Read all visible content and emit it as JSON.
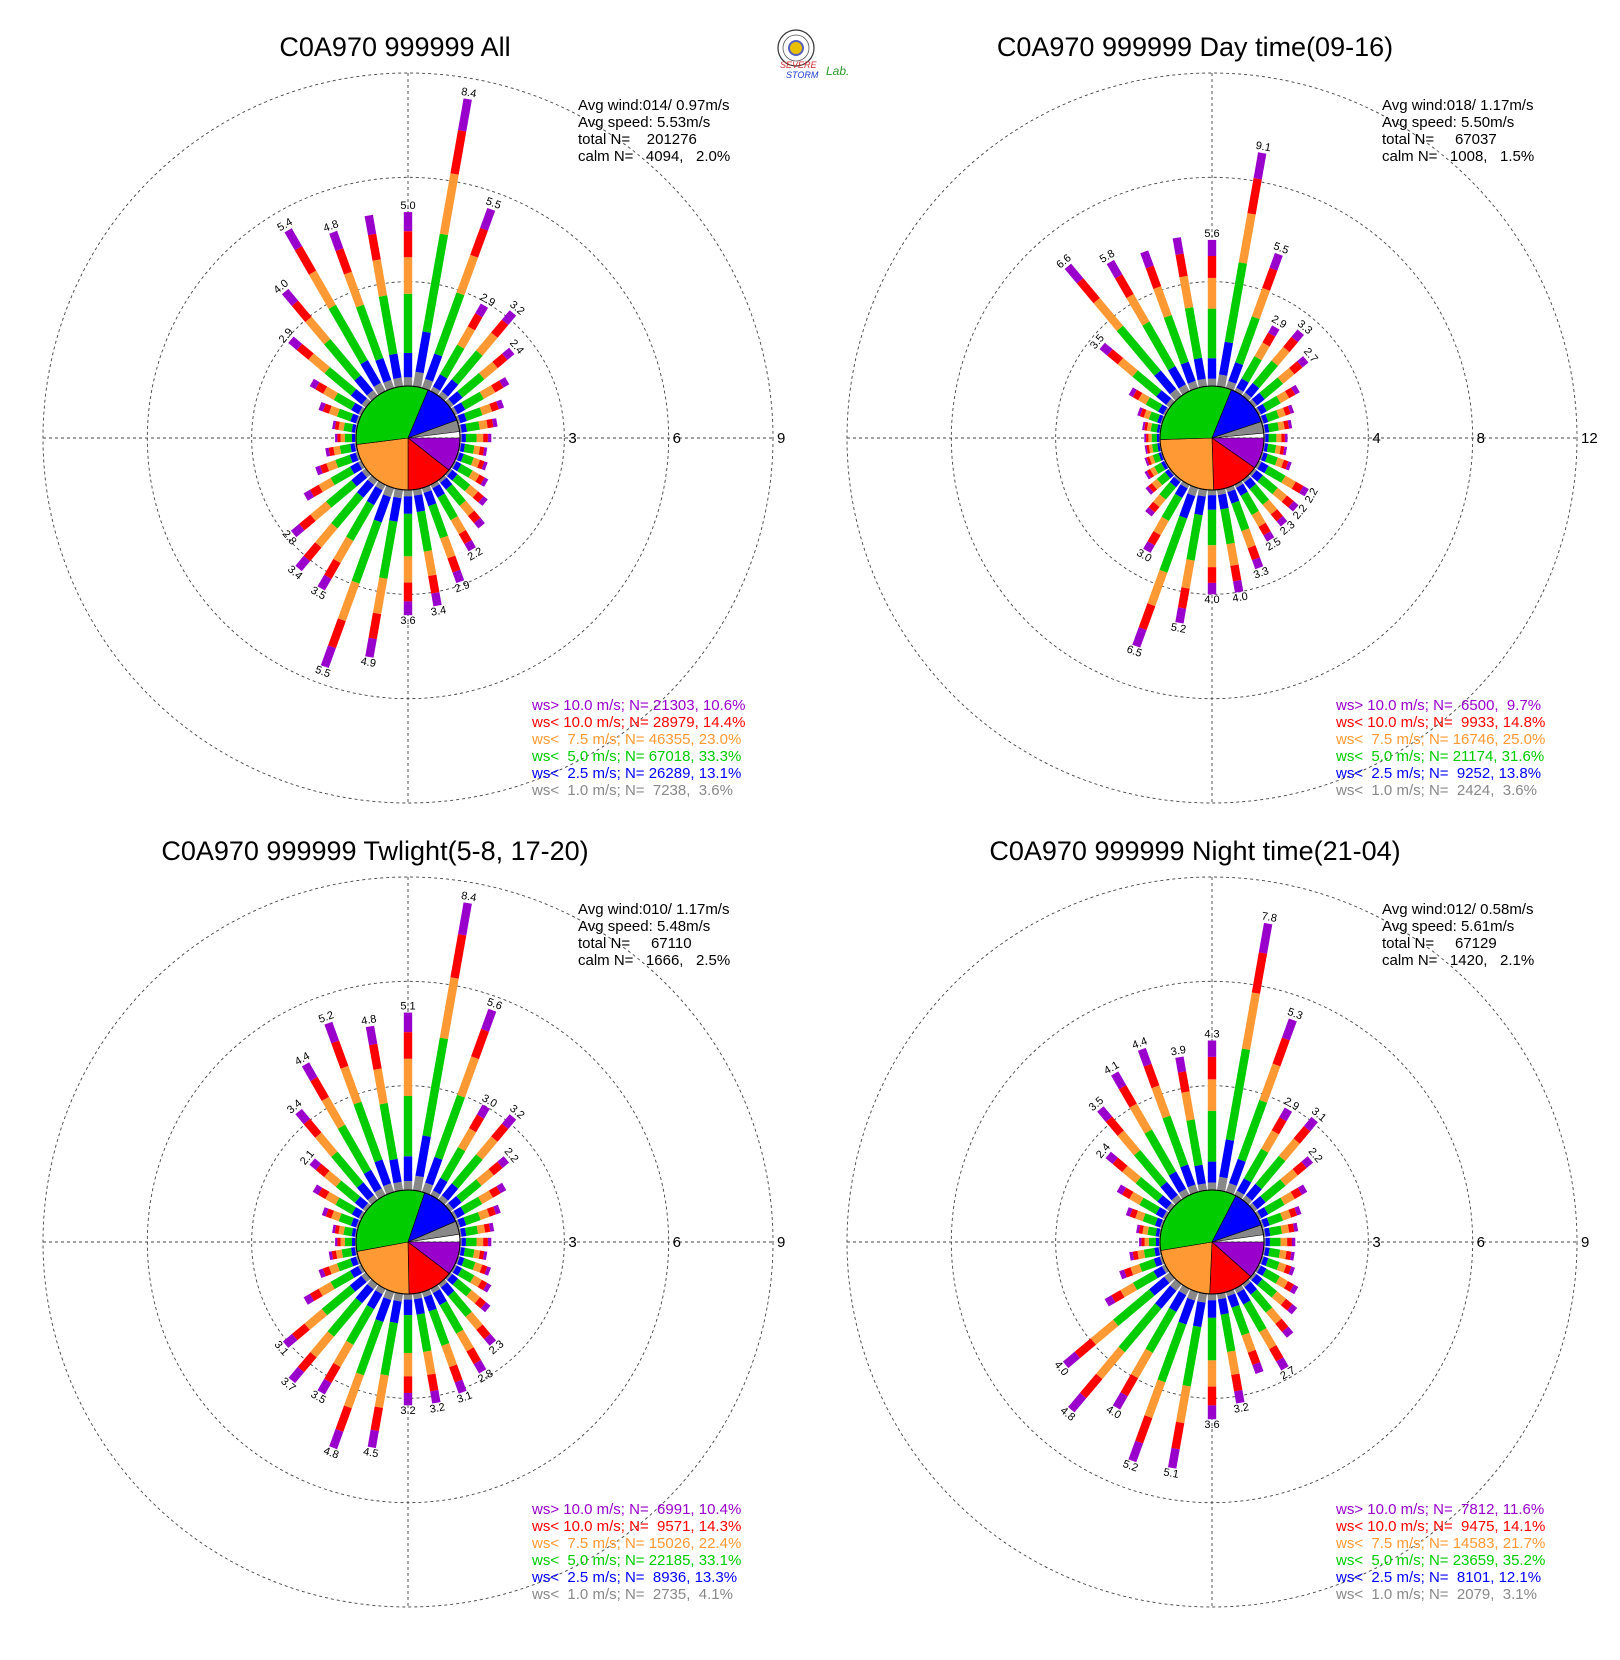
{
  "logo": {
    "line1": "SEVERE",
    "line2": "STORM",
    "line3": "Lab."
  },
  "colors": {
    "purple": "#9900cc",
    "red": "#ff0000",
    "orange": "#ff9933",
    "green": "#00cc00",
    "blue": "#0000ff",
    "gray": "#888888"
  },
  "chart_data": [
    {
      "type": "wind-rose",
      "title": "C0A970 999999 All",
      "ring_labels": [
        "3",
        "6",
        "9"
      ],
      "rmax": 9,
      "info": {
        "avg_wind": "Avg wind:014/ 0.97m/s",
        "avg_speed": "Avg speed: 5.53m/s",
        "total": "total N=    201276",
        "calm": "calm N=   4094,   2.0%"
      },
      "legend": [
        "ws> 10.0 m/s; N= 21303, 10.6%",
        "ws< 10.0 m/s; N= 28979, 14.4%",
        "ws<  7.5 m/s; N= 46355, 23.0%",
        "ws<  5.0 m/s; N= 67018, 33.3%",
        "ws<  2.5 m/s; N= 26289, 13.1%",
        "ws<  1.0 m/s; N=  7238,  3.6%"
      ],
      "center_pie": [
        10.6,
        14.4,
        23.0,
        33.3,
        13.1,
        3.6
      ],
      "directions_deg": [
        0,
        10,
        20,
        30,
        40,
        50,
        60,
        70,
        80,
        90,
        100,
        110,
        120,
        130,
        140,
        150,
        160,
        170,
        180,
        190,
        200,
        210,
        220,
        230,
        240,
        250,
        260,
        270,
        280,
        290,
        300,
        310,
        320,
        330,
        340,
        350
      ],
      "totals": [
        5.0,
        8.4,
        5.5,
        2.9,
        3.2,
        2.4,
        1.8,
        1.4,
        1.1,
        0.9,
        0.8,
        0.9,
        1.1,
        1.4,
        1.8,
        2.2,
        2.9,
        3.4,
        3.6,
        4.9,
        5.5,
        3.5,
        3.4,
        2.8,
        1.9,
        1.3,
        0.9,
        0.6,
        0.7,
        1.2,
        1.7,
        2.9,
        4.0,
        5.4,
        4.8,
        5.0
      ],
      "labeled": [
        {
          "dir": 0,
          "label": "5.0"
        },
        {
          "dir": 10,
          "label": "8.4"
        },
        {
          "dir": 20,
          "label": "5.5"
        },
        {
          "dir": 30,
          "label": "2.9"
        },
        {
          "dir": 40,
          "label": "3.2"
        },
        {
          "dir": 50,
          "label": "2.4"
        },
        {
          "dir": 150,
          "label": "2.2"
        },
        {
          "dir": 160,
          "label": "2.9"
        },
        {
          "dir": 170,
          "label": "3.4"
        },
        {
          "dir": 180,
          "label": "3.6"
        },
        {
          "dir": 190,
          "label": "4.9"
        },
        {
          "dir": 200,
          "label": "5.5"
        },
        {
          "dir": 210,
          "label": "3.5"
        },
        {
          "dir": 220,
          "label": "3.4"
        },
        {
          "dir": 230,
          "label": "2.8"
        },
        {
          "dir": 310,
          "label": "2.9"
        },
        {
          "dir": 320,
          "label": "4.0"
        },
        {
          "dir": 330,
          "label": "5.4"
        },
        {
          "dir": 340,
          "label": "4.8"
        }
      ]
    },
    {
      "type": "wind-rose",
      "title": "C0A970 999999 Day time(09-16)",
      "ring_labels": [
        "4",
        "8",
        "12"
      ],
      "rmax": 12,
      "info": {
        "avg_wind": "Avg wind:018/ 1.17m/s",
        "avg_speed": "Avg speed: 5.50m/s",
        "total": "total N=     67037",
        "calm": "calm N=   1008,   1.5%"
      },
      "legend": [
        "ws> 10.0 m/s; N=  6500,  9.7%",
        "ws< 10.0 m/s; N=  9933, 14.8%",
        "ws<  7.5 m/s; N= 16746, 25.0%",
        "ws<  5.0 m/s; N= 21174, 31.6%",
        "ws<  2.5 m/s; N=  9252, 13.8%",
        "ws<  1.0 m/s; N=  2424,  3.6%"
      ],
      "center_pie": [
        9.7,
        14.8,
        25.0,
        31.6,
        13.8,
        3.6
      ],
      "directions_deg": [
        0,
        10,
        20,
        30,
        40,
        50,
        60,
        70,
        80,
        90,
        100,
        110,
        120,
        130,
        140,
        150,
        160,
        170,
        180,
        190,
        200,
        210,
        220,
        230,
        240,
        250,
        260,
        270,
        280,
        290,
        300,
        310,
        320,
        330,
        340,
        350
      ],
      "totals": [
        5.6,
        9.1,
        5.5,
        2.9,
        3.3,
        2.7,
        1.8,
        1.3,
        1.1,
        0.9,
        0.9,
        1.2,
        2.2,
        2.2,
        2.3,
        2.5,
        3.3,
        4.0,
        4.0,
        5.2,
        6.5,
        3.0,
        1.8,
        1.2,
        0.9,
        0.7,
        0.6,
        0.6,
        0.7,
        1.0,
        1.6,
        3.5,
        6.6,
        5.8,
        5.6,
        5.8
      ],
      "labeled": [
        {
          "dir": 0,
          "label": "5.6"
        },
        {
          "dir": 10,
          "label": "9.1"
        },
        {
          "dir": 20,
          "label": "5.5"
        },
        {
          "dir": 30,
          "label": "2.9"
        },
        {
          "dir": 40,
          "label": "3.3"
        },
        {
          "dir": 50,
          "label": "2.7"
        },
        {
          "dir": 120,
          "label": "2.2"
        },
        {
          "dir": 130,
          "label": "2.2"
        },
        {
          "dir": 140,
          "label": "2.3"
        },
        {
          "dir": 150,
          "label": "2.5"
        },
        {
          "dir": 160,
          "label": "3.3"
        },
        {
          "dir": 170,
          "label": "4.0"
        },
        {
          "dir": 180,
          "label": "4.0"
        },
        {
          "dir": 190,
          "label": "5.2"
        },
        {
          "dir": 200,
          "label": "6.5"
        },
        {
          "dir": 210,
          "label": "3.0"
        },
        {
          "dir": 310,
          "label": "3.5"
        },
        {
          "dir": 320,
          "label": "6.6"
        },
        {
          "dir": 330,
          "label": "5.8"
        }
      ]
    },
    {
      "type": "wind-rose",
      "title": "C0A970 999999 Twlight(5-8, 17-20)",
      "ring_labels": [
        "3",
        "6",
        "9"
      ],
      "rmax": 9,
      "info": {
        "avg_wind": "Avg wind:010/ 1.17m/s",
        "avg_speed": "Avg speed: 5.48m/s",
        "total": "total N=     67110",
        "calm": "calm N=   1666,   2.5%"
      },
      "legend": [
        "ws> 10.0 m/s; N=  6991, 10.4%",
        "ws< 10.0 m/s; N=  9571, 14.3%",
        "ws<  7.5 m/s; N= 15026, 22.4%",
        "ws<  5.0 m/s; N= 22185, 33.1%",
        "ws<  2.5 m/s; N=  8936, 13.3%",
        "ws<  1.0 m/s; N=  2735,  4.1%"
      ],
      "center_pie": [
        10.4,
        14.3,
        22.4,
        33.1,
        13.3,
        4.1
      ],
      "directions_deg": [
        0,
        10,
        20,
        30,
        40,
        50,
        60,
        70,
        80,
        90,
        100,
        110,
        120,
        130,
        140,
        150,
        160,
        170,
        180,
        190,
        200,
        210,
        220,
        230,
        240,
        250,
        260,
        270,
        280,
        290,
        300,
        310,
        320,
        330,
        340,
        350
      ],
      "totals": [
        5.1,
        8.4,
        5.6,
        3.0,
        3.2,
        2.2,
        1.7,
        1.3,
        1.0,
        0.9,
        0.8,
        1.0,
        1.2,
        1.5,
        2.3,
        2.8,
        3.1,
        3.2,
        3.2,
        4.5,
        4.8,
        3.5,
        3.7,
        3.1,
        1.9,
        1.2,
        0.8,
        0.6,
        0.7,
        1.1,
        1.6,
        2.1,
        3.4,
        4.4,
        5.2,
        4.8
      ],
      "labeled": [
        {
          "dir": 0,
          "label": "5.1"
        },
        {
          "dir": 10,
          "label": "8.4"
        },
        {
          "dir": 20,
          "label": "5.6"
        },
        {
          "dir": 30,
          "label": "3.0"
        },
        {
          "dir": 40,
          "label": "3.2"
        },
        {
          "dir": 50,
          "label": "2.2"
        },
        {
          "dir": 140,
          "label": "2.3"
        },
        {
          "dir": 150,
          "label": "2.8"
        },
        {
          "dir": 160,
          "label": "3.1"
        },
        {
          "dir": 170,
          "label": "3.2"
        },
        {
          "dir": 180,
          "label": "3.2"
        },
        {
          "dir": 190,
          "label": "4.5"
        },
        {
          "dir": 200,
          "label": "4.8"
        },
        {
          "dir": 210,
          "label": "3.5"
        },
        {
          "dir": 220,
          "label": "3.7"
        },
        {
          "dir": 230,
          "label": "3.1"
        },
        {
          "dir": 310,
          "label": "2.1"
        },
        {
          "dir": 320,
          "label": "3.4"
        },
        {
          "dir": 330,
          "label": "4.4"
        },
        {
          "dir": 340,
          "label": "5.2"
        },
        {
          "dir": 350,
          "label": "4.8"
        }
      ]
    },
    {
      "type": "wind-rose",
      "title": "C0A970 999999 Night time(21-04)",
      "ring_labels": [
        "3",
        "6",
        "9"
      ],
      "rmax": 9,
      "info": {
        "avg_wind": "Avg wind:012/ 0.58m/s",
        "avg_speed": "Avg speed: 5.61m/s",
        "total": "total N=     67129",
        "calm": "calm N=   1420,   2.1%"
      },
      "legend": [
        "ws> 10.0 m/s; N=  7812, 11.6%",
        "ws< 10.0 m/s; N=  9475, 14.1%",
        "ws<  7.5 m/s; N= 14583, 21.7%",
        "ws<  5.0 m/s; N= 23659, 35.2%",
        "ws<  2.5 m/s; N=  8101, 12.1%",
        "ws<  1.0 m/s; N=  2079,  3.1%"
      ],
      "center_pie": [
        11.6,
        14.1,
        21.7,
        35.2,
        12.1,
        3.1
      ],
      "directions_deg": [
        0,
        10,
        20,
        30,
        40,
        50,
        60,
        70,
        80,
        90,
        100,
        110,
        120,
        130,
        140,
        150,
        160,
        170,
        180,
        190,
        200,
        210,
        220,
        230,
        240,
        250,
        260,
        270,
        280,
        290,
        300,
        310,
        320,
        330,
        340,
        350
      ],
      "totals": [
        4.3,
        7.8,
        5.3,
        2.9,
        3.1,
        2.2,
        1.6,
        1.2,
        1.0,
        0.9,
        0.9,
        1.0,
        1.3,
        1.6,
        2.0,
        2.7,
        2.5,
        3.2,
        3.6,
        5.1,
        5.2,
        4.0,
        4.8,
        4.0,
        2.0,
        1.3,
        0.9,
        0.6,
        0.7,
        1.1,
        1.6,
        2.4,
        3.5,
        4.1,
        4.4,
        3.9
      ],
      "labeled": [
        {
          "dir": 0,
          "label": "4.3"
        },
        {
          "dir": 10,
          "label": "7.8"
        },
        {
          "dir": 20,
          "label": "5.3"
        },
        {
          "dir": 30,
          "label": "2.9"
        },
        {
          "dir": 40,
          "label": "3.1"
        },
        {
          "dir": 50,
          "label": "2.2"
        },
        {
          "dir": 150,
          "label": "2.7"
        },
        {
          "dir": 170,
          "label": "3.2"
        },
        {
          "dir": 180,
          "label": "3.6"
        },
        {
          "dir": 190,
          "label": "5.1"
        },
        {
          "dir": 200,
          "label": "5.2"
        },
        {
          "dir": 210,
          "label": "4.0"
        },
        {
          "dir": 220,
          "label": "4.8"
        },
        {
          "dir": 230,
          "label": "4.0"
        },
        {
          "dir": 310,
          "label": "2.4"
        },
        {
          "dir": 320,
          "label": "3.5"
        },
        {
          "dir": 330,
          "label": "4.1"
        },
        {
          "dir": 340,
          "label": "4.4"
        },
        {
          "dir": 350,
          "label": "3.9"
        }
      ]
    }
  ]
}
